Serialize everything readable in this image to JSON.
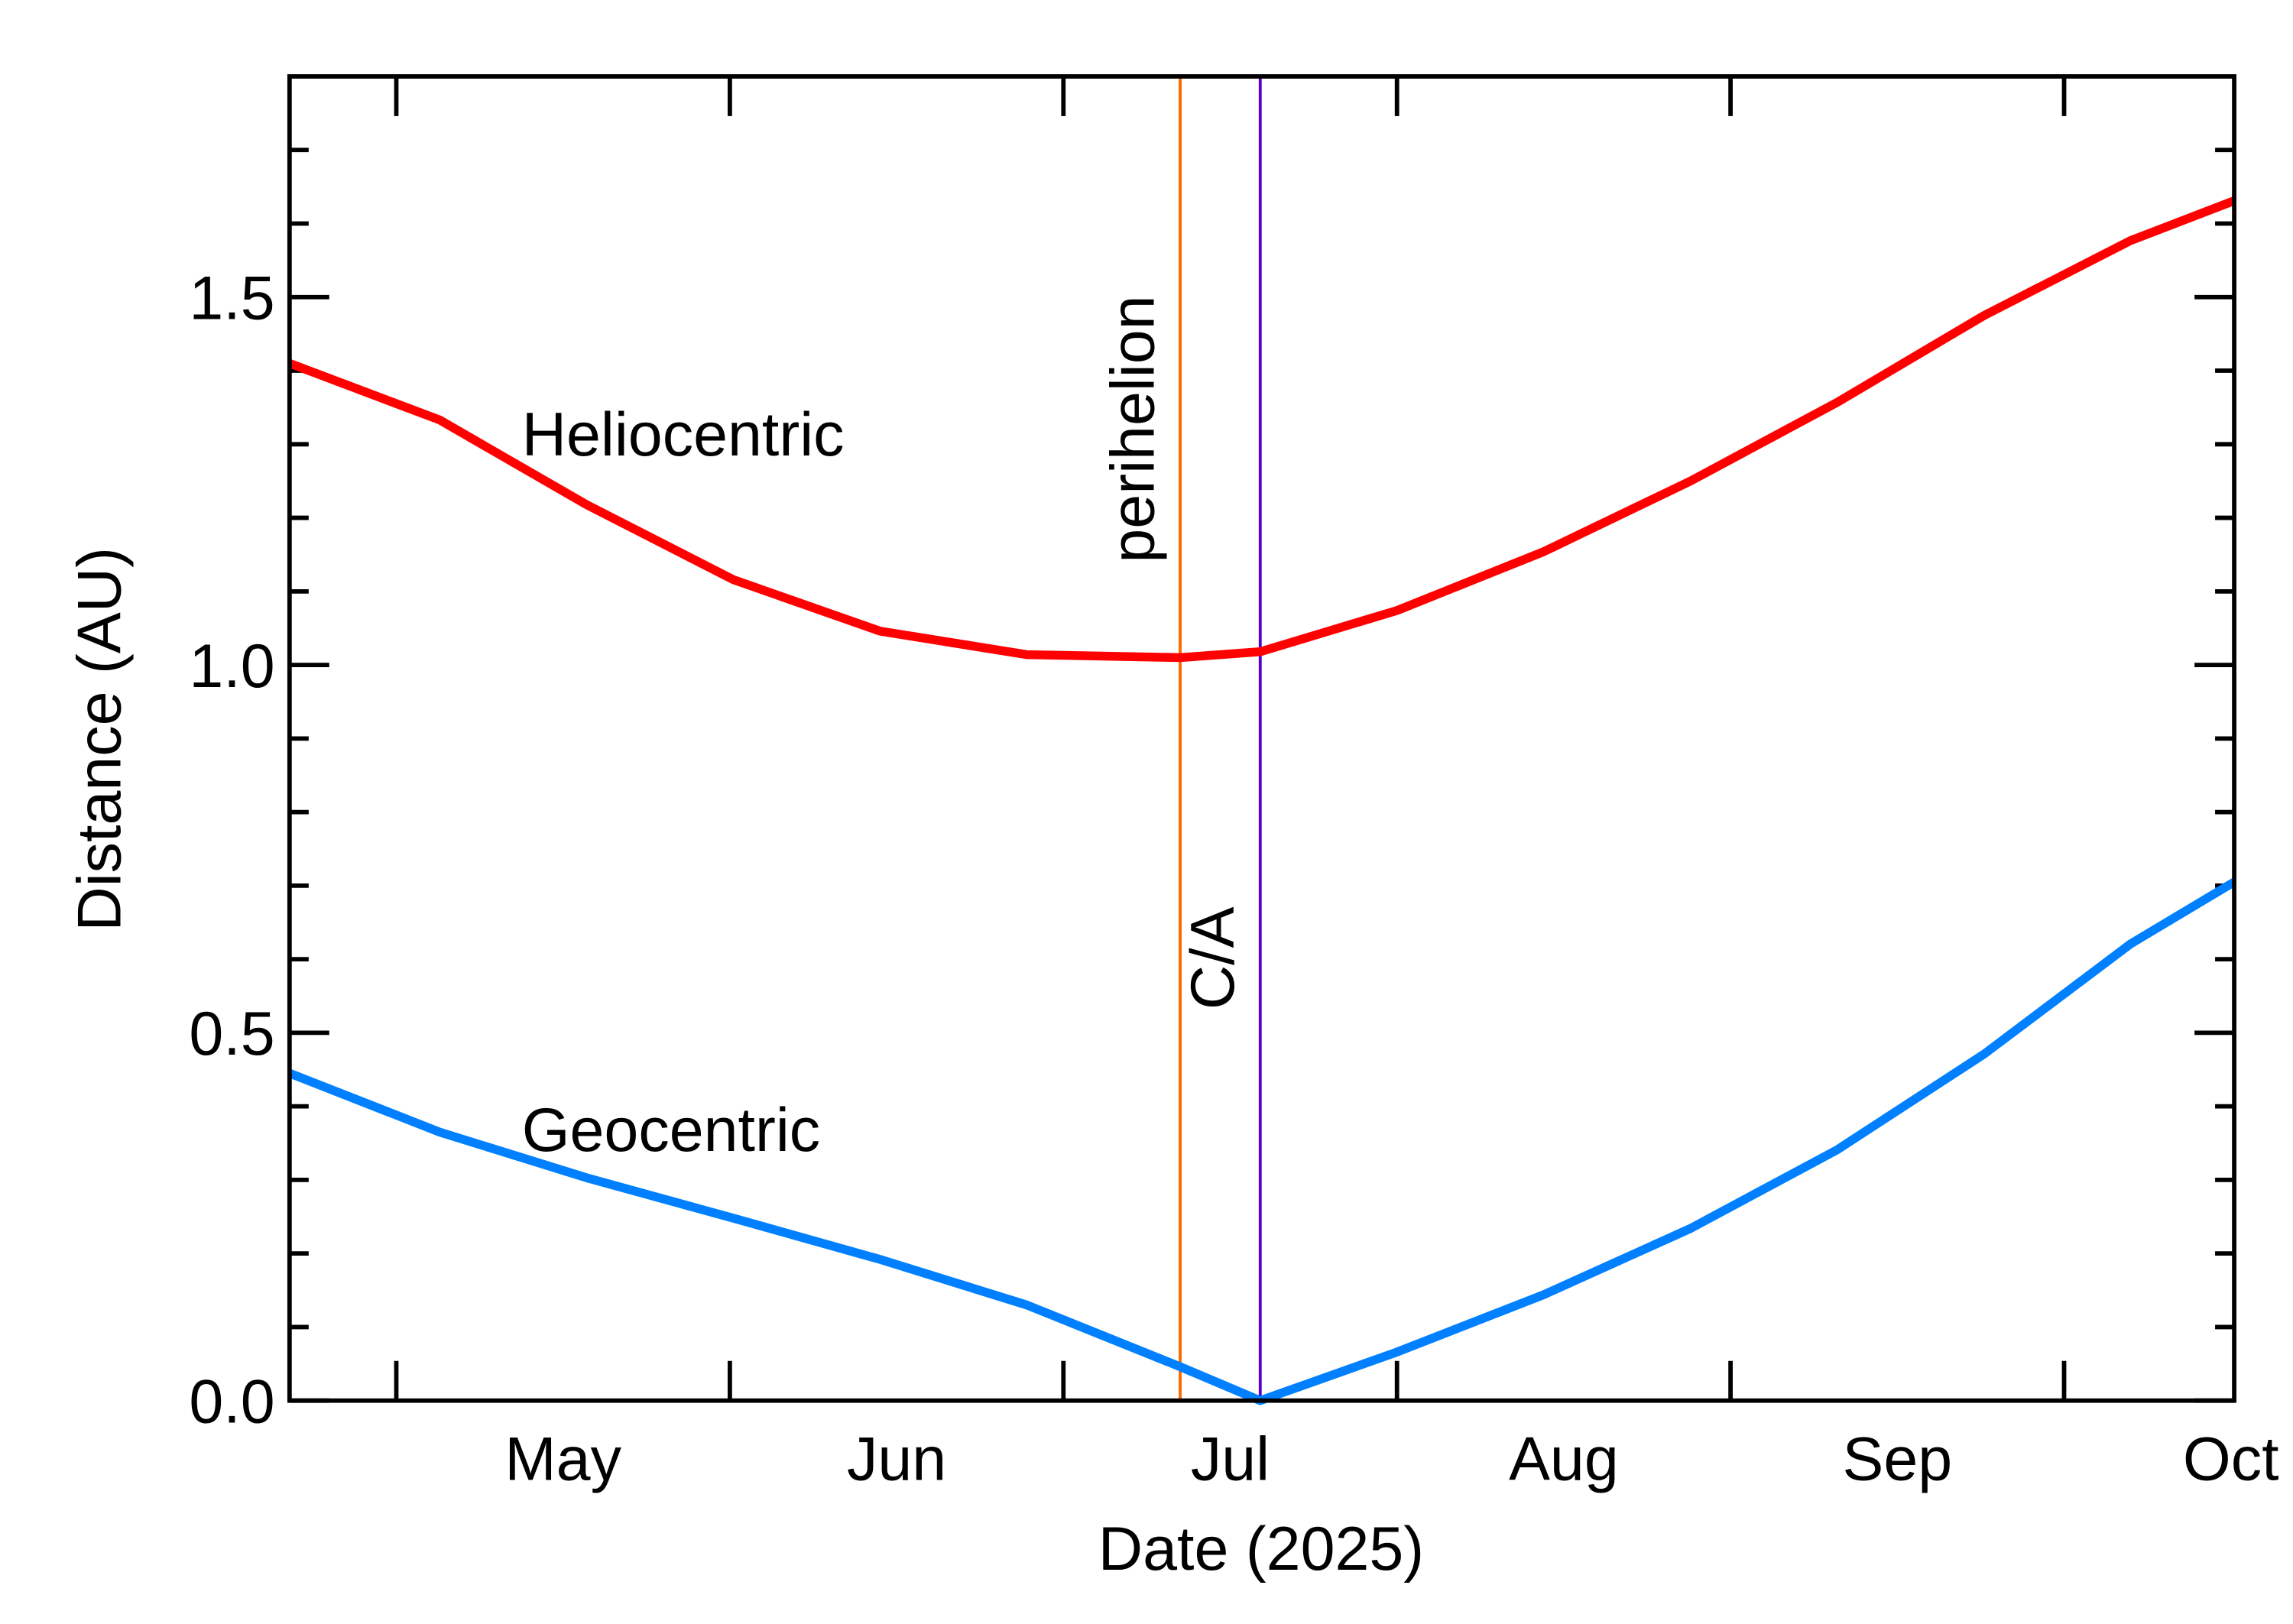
{
  "chart_data": {
    "type": "line",
    "x_label": "Date (2025)",
    "y_label": "Distance (AU)",
    "x": [
      4.68,
      5.13,
      5.57,
      6.01,
      6.45,
      6.89,
      7.35,
      7.59,
      8.0,
      8.44,
      8.88,
      9.32,
      9.76,
      10.2,
      10.51
    ],
    "series": [
      {
        "name": "Heliocentric",
        "color": "#ff0000",
        "values": [
          1.41,
          1.333,
          1.218,
          1.116,
          1.046,
          1.014,
          1.01,
          1.018,
          1.074,
          1.154,
          1.25,
          1.357,
          1.475,
          1.577,
          1.631
        ]
      },
      {
        "name": "Geocentric",
        "color": "#0080ff",
        "values": [
          0.445,
          0.365,
          0.303,
          0.248,
          0.192,
          0.13,
          0.046,
          0.0,
          0.066,
          0.144,
          0.234,
          0.341,
          0.471,
          0.621,
          0.705
        ]
      }
    ],
    "vlines": [
      {
        "x": 7.35,
        "label": "perihelion",
        "color": "#ff6600"
      },
      {
        "x": 7.59,
        "label": "C/A",
        "color": "#5500cc"
      }
    ],
    "xlim": [
      4.68,
      10.51
    ],
    "xticks": [
      5,
      6,
      7,
      8,
      9,
      10
    ],
    "xtick_labels": [
      {
        "value": 5.5,
        "label": "May"
      },
      {
        "value": 6.5,
        "label": "Jun"
      },
      {
        "value": 7.5,
        "label": "Jul"
      },
      {
        "value": 8.5,
        "label": "Aug"
      },
      {
        "value": 9.5,
        "label": "Sep"
      },
      {
        "value": 10.5,
        "label": "Oct"
      }
    ],
    "ylim": [
      0,
      1.8
    ],
    "yticks": [
      {
        "value": 0,
        "label": "0.0"
      },
      {
        "value": 0.5,
        "label": "0.5"
      },
      {
        "value": 1,
        "label": "1.0"
      },
      {
        "value": 1.5,
        "label": "1.5"
      }
    ],
    "yminor": [
      0.1,
      0.2,
      0.3,
      0.4,
      0.6,
      0.7,
      0.8,
      0.9,
      1.1,
      1.2,
      1.3,
      1.4,
      1.6,
      1.7
    ]
  }
}
